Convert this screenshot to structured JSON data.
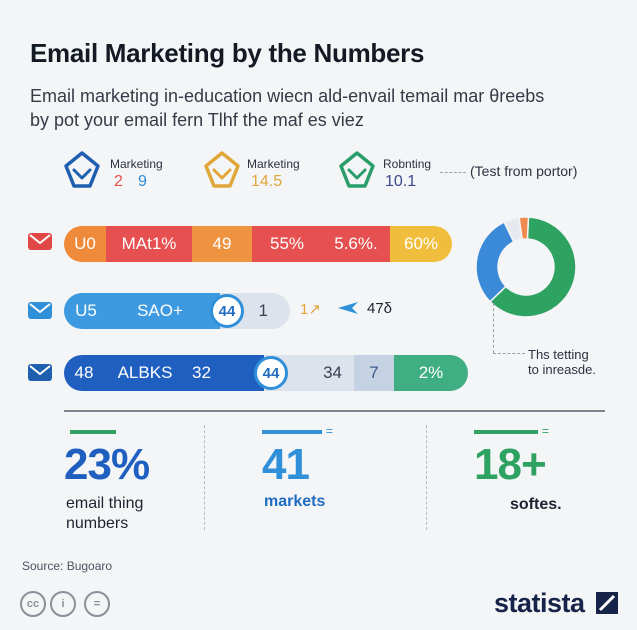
{
  "title": "Email Marketing by the Numbers",
  "subtitle_line1": "Email marketing in-education wiecn ald-envail temail mar θreebs",
  "subtitle_line2": "by pot your email fern Tlhf the maf es viez",
  "kpis": [
    {
      "icon": "marketing-badge-icon",
      "label": "Marketing",
      "value_a": "2",
      "value_b": "9",
      "color": "#1f5fb0",
      "color_b": "#2a8ad4"
    },
    {
      "icon": "marketing-badge-icon",
      "label": "Marketing",
      "value_a": "14.5",
      "value_b": "",
      "color": "#e0a63a",
      "color_b": "#e0a63a"
    },
    {
      "icon": "robnting-badge-icon",
      "label": "Robnting",
      "value_a": "10.1",
      "value_b": "",
      "color": "#2a9e6a",
      "color_b": "#3a4a8c"
    }
  ],
  "rows": [
    {
      "icon": "mail-icon",
      "icon_color": "#e04848",
      "segments": [
        {
          "text": "U0",
          "bg": "#ee8a3a",
          "fg": "#ffffff"
        },
        {
          "text": "MAt1%",
          "bg": "#e65050",
          "fg": "#ffffff"
        },
        {
          "text": "49",
          "bg": "#ee9440",
          "fg": "#ffffff"
        },
        {
          "text": "55%",
          "bg": "#e65050",
          "fg": "#ffffff"
        },
        {
          "text": "5.6%.",
          "bg": "#e65050",
          "fg": "#ffffff"
        },
        {
          "text": "60%",
          "bg": "#f0be3c",
          "fg": "#ffffff"
        }
      ]
    },
    {
      "icon": "mail-icon",
      "icon_color": "#2f8fd8",
      "segments": [
        {
          "text": "U5",
          "bg": "#3e9ae0",
          "fg": "#ffffff"
        },
        {
          "text": "SAO+",
          "bg": "#3e9ae0",
          "fg": "#ffffff"
        },
        {
          "text": "44",
          "bg": "#ffffff",
          "fg": "#1f6cc0"
        },
        {
          "text": "1",
          "bg": "#dde3ec",
          "fg": "#3a4150"
        }
      ],
      "extra_a": "1↗",
      "extra_b": "47δ"
    },
    {
      "icon": "mail-icon",
      "icon_color": "#1f5fb0",
      "segments": [
        {
          "text": "48",
          "bg": "#1f5fc0",
          "fg": "#ffffff"
        },
        {
          "text": "ALBKS",
          "bg": "#1f5fc0",
          "fg": "#ffffff"
        },
        {
          "text": "32",
          "bg": "#1f5fc0",
          "fg": "#ffffff"
        },
        {
          "text": "44",
          "bg": "#ffffff",
          "fg": "#1f6cc0"
        },
        {
          "text": "34",
          "bg": "#dde3ec",
          "fg": "#3a4150"
        },
        {
          "text": "7",
          "bg": "#c4d2e4",
          "fg": "#3a5a8c"
        },
        {
          "text": "2%",
          "bg": "#3fae82",
          "fg": "#ffffff"
        }
      ]
    }
  ],
  "pie_note_top": "(Test from portor)",
  "pie_note_bottom_1": "Ths tetting",
  "pie_note_bottom_2": "to inreasde.",
  "chart_data": {
    "type": "pie",
    "title": "",
    "values": [
      62,
      30,
      5,
      3
    ],
    "colors": [
      "#2ea260",
      "#3a8ad8",
      "#e7e9ee",
      "#f08a50"
    ]
  },
  "stats": [
    {
      "number": "23%",
      "label_1": "email thing",
      "label_2": "numbers",
      "color": "#1f5fc0",
      "label_color": "#1d2430",
      "mini": "="
    },
    {
      "number": "41",
      "label_1": "markets",
      "label_2": "",
      "color": "#2f8fd8",
      "label_color": "#1f6cc0",
      "mini": "="
    },
    {
      "number": "18+",
      "label_1": "softes.",
      "label_2": "",
      "color": "#2ea260",
      "label_color": "#1d2430",
      "mini": "="
    }
  ],
  "source": "Source: Bugoaro",
  "license_icons": [
    "cc-icon",
    "by-icon",
    "nd-icon"
  ],
  "license_text": [
    "cc",
    "i",
    "="
  ],
  "brand": "statista"
}
